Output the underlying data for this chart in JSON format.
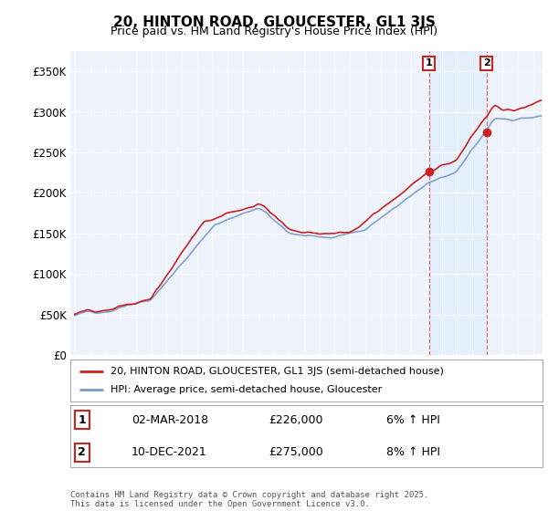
{
  "title": "20, HINTON ROAD, GLOUCESTER, GL1 3JS",
  "subtitle": "Price paid vs. HM Land Registry's House Price Index (HPI)",
  "bg_color": "#ffffff",
  "plot_bg_color": "#eef2fb",
  "ylim": [
    0,
    375000
  ],
  "yticks": [
    0,
    50000,
    100000,
    150000,
    200000,
    250000,
    300000,
    350000
  ],
  "ytick_labels": [
    "£0",
    "£50K",
    "£100K",
    "£150K",
    "£200K",
    "£250K",
    "£300K",
    "£350K"
  ],
  "start_year": 1995,
  "end_year": 2025,
  "hpi_color": "#7799cc",
  "price_color": "#cc2222",
  "marker1_year": 2018.17,
  "marker1_value": 226000,
  "marker1_label": "1",
  "marker1_date": "02-MAR-2018",
  "marker1_pct": "6% ↑ HPI",
  "marker2_year": 2021.94,
  "marker2_value": 275000,
  "marker2_label": "2",
  "marker2_date": "10-DEC-2021",
  "marker2_pct": "8% ↑ HPI",
  "legend_line1": "20, HINTON ROAD, GLOUCESTER, GL1 3JS (semi-detached house)",
  "legend_line2": "HPI: Average price, semi-detached house, Gloucester",
  "footer": "Contains HM Land Registry data © Crown copyright and database right 2025.\nThis data is licensed under the Open Government Licence v3.0."
}
